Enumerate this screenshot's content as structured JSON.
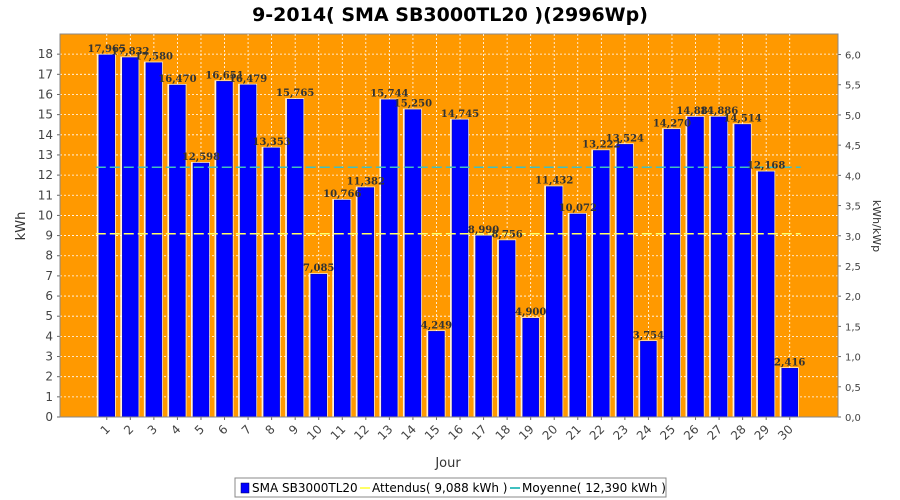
{
  "chart_data": {
    "type": "bar",
    "title": "9-2014( SMA SB3000TL20 )(2996Wp)",
    "xlabel": "Jour",
    "ylabel": "kWh",
    "ylabel_right": "kWh/kWp",
    "ylim": [
      0,
      19
    ],
    "yticks": [
      0,
      1,
      2,
      3,
      4,
      5,
      6,
      7,
      8,
      9,
      10,
      11,
      12,
      13,
      14,
      15,
      16,
      17,
      18
    ],
    "ylim_right": [
      0,
      6.34
    ],
    "yticks_right": [
      "0,0",
      "0,5",
      "1,0",
      "1,5",
      "2,0",
      "2,5",
      "3,0",
      "3,5",
      "4,0",
      "4,5",
      "5,0",
      "5,5",
      "6,0"
    ],
    "yticks_right_values": [
      0,
      0.5,
      1,
      1.5,
      2,
      2.5,
      3,
      3.5,
      4,
      4.5,
      5,
      5.5,
      6
    ],
    "categories": [
      "1",
      "2",
      "3",
      "4",
      "5",
      "6",
      "7",
      "8",
      "9",
      "10",
      "11",
      "12",
      "13",
      "14",
      "15",
      "16",
      "17",
      "18",
      "19",
      "20",
      "21",
      "22",
      "23",
      "24",
      "25",
      "26",
      "27",
      "28",
      "29",
      "30"
    ],
    "series": [
      {
        "name": "SMA SB3000TL20",
        "values": [
          17.965,
          17.832,
          17.58,
          16.47,
          12.598,
          16.651,
          16.479,
          13.353,
          15.765,
          7.085,
          10.766,
          11.382,
          15.744,
          15.25,
          4.249,
          14.745,
          8.99,
          8.756,
          4.9,
          11.432,
          10.072,
          13.222,
          13.524,
          3.754,
          14.27,
          14.881,
          14.886,
          14.514,
          12.168,
          2.416
        ],
        "labels": [
          "17,965",
          "17,832",
          "17,580",
          "16,470",
          "12,598",
          "16,651",
          "16,479",
          "13,353",
          "15,765",
          "7,085",
          "10,766",
          "11,382",
          "15,744",
          "15,250",
          "4,249",
          "14,745",
          "8,990",
          "8,756",
          "4,900",
          "11,432",
          "10,072",
          "13,222",
          "13,524",
          "3,754",
          "14,270",
          "14,881",
          "14,886",
          "14,514",
          "12,168",
          "2,416"
        ]
      }
    ],
    "reference_lines": [
      {
        "name": "Attendus",
        "value": 9.088
      },
      {
        "name": "Moyenne",
        "value": 12.39
      }
    ],
    "legend": [
      {
        "label": "SMA SB3000TL20",
        "color": "#0000ff"
      },
      {
        "label": "Attendus( 9,088 kWh )",
        "color": "#ffff66"
      },
      {
        "label": "Moyenne( 12,390 kWh )",
        "color": "#40c0c0"
      }
    ],
    "legend_position": "bottom",
    "grid": true,
    "colors": {
      "plot_background": "#ff9900",
      "bar": "#0000ff",
      "bar_highlight": "#ffffff",
      "expected_line": "#ffff66",
      "average_line": "#40c0c0",
      "grid": "#ffffff"
    }
  }
}
